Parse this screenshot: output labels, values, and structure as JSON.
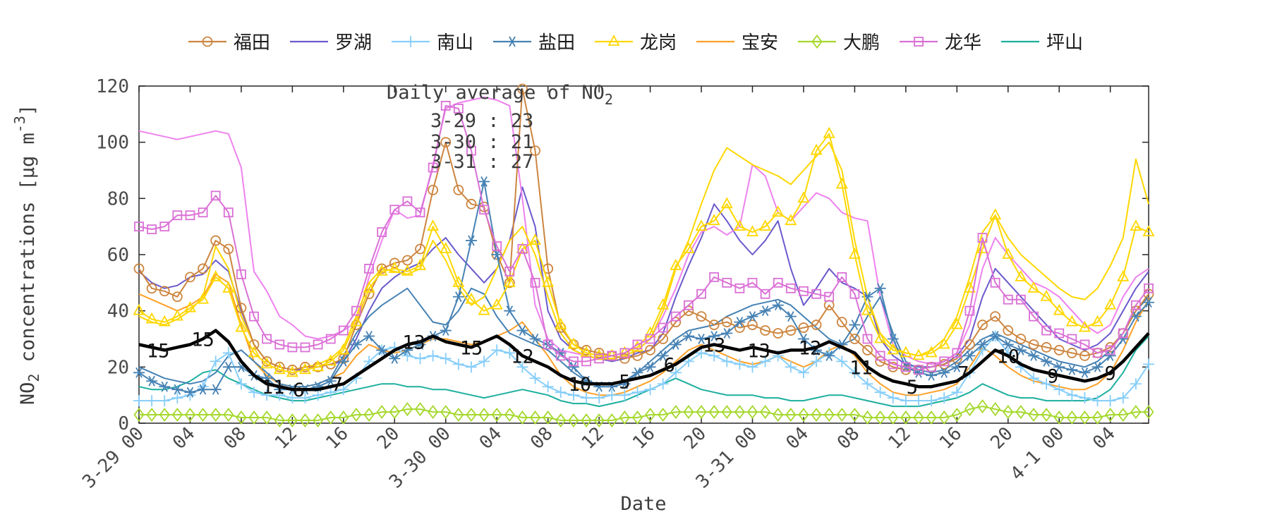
{
  "legend_note": "legend built from series with legend:true",
  "chart_data": {
    "type": "line",
    "xlabel": "Date",
    "ylabel": {
      "p1": "NO",
      "sub": "2",
      "p2": " concentrations [μg m",
      "sup": "-3",
      "p3": "]"
    },
    "ylim": [
      0,
      120
    ],
    "yticks": [
      0,
      20,
      40,
      60,
      80,
      100,
      120
    ],
    "hours_total": 79,
    "xticks": [
      {
        "h": 0,
        "label": "3-29 00"
      },
      {
        "h": 4,
        "label": "04"
      },
      {
        "h": 8,
        "label": "08"
      },
      {
        "h": 12,
        "label": "12"
      },
      {
        "h": 16,
        "label": "16"
      },
      {
        "h": 20,
        "label": "20"
      },
      {
        "h": 24,
        "label": "3-30 00"
      },
      {
        "h": 28,
        "label": "04"
      },
      {
        "h": 32,
        "label": "08"
      },
      {
        "h": 36,
        "label": "12"
      },
      {
        "h": 40,
        "label": "16"
      },
      {
        "h": 44,
        "label": "20"
      },
      {
        "h": 48,
        "label": "3-31 00"
      },
      {
        "h": 52,
        "label": "04"
      },
      {
        "h": 56,
        "label": "08"
      },
      {
        "h": 60,
        "label": "12"
      },
      {
        "h": 64,
        "label": "16"
      },
      {
        "h": 68,
        "label": "20"
      },
      {
        "h": 72,
        "label": "4-1 00"
      },
      {
        "h": 76,
        "label": "04"
      }
    ],
    "annotation": {
      "title": "Daily average of NO",
      "title_sub": "2",
      "rows": [
        "3-29 : 23",
        "3-30 : 21",
        "3-31 : 27"
      ]
    },
    "line_labels": [
      {
        "h": 1.5,
        "text": "15"
      },
      {
        "h": 5,
        "text": "15"
      },
      {
        "h": 10.5,
        "text": "11"
      },
      {
        "h": 12.5,
        "text": "6"
      },
      {
        "h": 15.5,
        "text": "7"
      },
      {
        "h": 21.5,
        "text": "13"
      },
      {
        "h": 26,
        "text": "15"
      },
      {
        "h": 30,
        "text": "12"
      },
      {
        "h": 34.5,
        "text": "10"
      },
      {
        "h": 38,
        "text": "5"
      },
      {
        "h": 41.5,
        "text": "6"
      },
      {
        "h": 45,
        "text": "13"
      },
      {
        "h": 48.5,
        "text": "13"
      },
      {
        "h": 52.5,
        "text": "12"
      },
      {
        "h": 56.5,
        "text": "11"
      },
      {
        "h": 60.5,
        "text": "5"
      },
      {
        "h": 64.5,
        "text": "7"
      },
      {
        "h": 68,
        "text": "10"
      },
      {
        "h": 71.5,
        "text": "9"
      },
      {
        "h": 76,
        "text": "9"
      }
    ],
    "series": [
      {
        "id": "futian",
        "label": "福田",
        "color": "#CD853F",
        "marker": "circle",
        "legend": true,
        "width": 2,
        "values": [
          55,
          48,
          47,
          45,
          52,
          55,
          65,
          62,
          41,
          28,
          22,
          20,
          19,
          20,
          20,
          21,
          23,
          35,
          46,
          55,
          57,
          58,
          62,
          83,
          100,
          83,
          78,
          77,
          60,
          50,
          119,
          97,
          55,
          34,
          28,
          26,
          25,
          24,
          23,
          24,
          26,
          30,
          36,
          40,
          38,
          35,
          36,
          34,
          35,
          33,
          32,
          33,
          34,
          35,
          42,
          36,
          30,
          26,
          22,
          20,
          19,
          19,
          20,
          21,
          23,
          28,
          35,
          38,
          33,
          30,
          28,
          27,
          26,
          25,
          24,
          25,
          27,
          32,
          40,
          46
        ]
      },
      {
        "id": "luohu",
        "label": "罗湖",
        "color": "#6A5ACD",
        "marker": "none",
        "legend": true,
        "width": 2,
        "values": [
          54,
          50,
          48,
          49,
          52,
          53,
          58,
          54,
          40,
          28,
          22,
          20,
          19,
          19,
          20,
          21,
          22,
          30,
          40,
          48,
          52,
          55,
          57,
          62,
          66,
          60,
          55,
          50,
          55,
          65,
          84,
          70,
          40,
          30,
          26,
          24,
          23,
          22,
          23,
          25,
          26,
          32,
          45,
          56,
          66,
          78,
          72,
          65,
          60,
          65,
          72,
          55,
          42,
          48,
          55,
          50,
          48,
          45,
          30,
          24,
          21,
          20,
          20,
          21,
          24,
          30,
          45,
          55,
          50,
          45,
          40,
          35,
          30,
          28,
          26,
          28,
          32,
          40,
          48,
          54
        ]
      },
      {
        "id": "nanshan",
        "label": "南山",
        "color": "#87CEFA",
        "marker": "plus",
        "legend": true,
        "width": 2,
        "values": [
          8,
          8,
          8,
          9,
          10,
          13,
          22,
          25,
          14,
          11,
          10,
          10,
          9,
          9,
          10,
          11,
          12,
          16,
          22,
          26,
          27,
          24,
          23,
          24,
          23,
          21,
          20,
          22,
          26,
          25,
          20,
          16,
          13,
          11,
          10,
          9,
          9,
          10,
          10,
          11,
          12,
          14,
          18,
          22,
          25,
          24,
          22,
          21,
          20,
          22,
          24,
          20,
          18,
          22,
          25,
          22,
          18,
          14,
          11,
          9,
          8,
          8,
          8,
          9,
          11,
          18,
          26,
          31,
          25,
          20,
          16,
          14,
          12,
          10,
          9,
          8,
          8,
          9,
          14,
          21
        ]
      },
      {
        "id": "yantian",
        "label": "盐田",
        "color": "#4682B4",
        "marker": "asterisk",
        "legend": true,
        "width": 2,
        "values": [
          18,
          15,
          13,
          12,
          11,
          12,
          12,
          20,
          20,
          17,
          16,
          12,
          12,
          12,
          13,
          15,
          22,
          28,
          31,
          26,
          23,
          26,
          28,
          31,
          33,
          45,
          65,
          86,
          60,
          40,
          33,
          30,
          28,
          25,
          20,
          15,
          13,
          13,
          14,
          18,
          20,
          24,
          28,
          31,
          30,
          31,
          32,
          36,
          38,
          40,
          42,
          38,
          30,
          26,
          24,
          28,
          35,
          45,
          48,
          30,
          20,
          18,
          17,
          18,
          20,
          24,
          28,
          31,
          28,
          26,
          24,
          22,
          20,
          19,
          18,
          20,
          24,
          30,
          38,
          43
        ]
      },
      {
        "id": "longgang",
        "label": "龙岗",
        "color": "#FFD700",
        "marker": "triangle",
        "legend": true,
        "width": 2,
        "values": [
          40,
          37,
          36,
          38,
          41,
          44,
          52,
          48,
          34,
          25,
          21,
          19,
          18,
          19,
          20,
          22,
          26,
          36,
          48,
          54,
          55,
          54,
          56,
          70,
          62,
          50,
          44,
          40,
          42,
          50,
          62,
          65,
          50,
          35,
          28,
          25,
          24,
          24,
          25,
          27,
          32,
          42,
          56,
          62,
          70,
          72,
          78,
          70,
          68,
          70,
          75,
          72,
          80,
          97,
          103,
          85,
          60,
          40,
          30,
          26,
          25,
          24,
          25,
          28,
          35,
          48,
          62,
          74,
          60,
          52,
          48,
          45,
          40,
          36,
          34,
          36,
          42,
          52,
          70,
          68
        ]
      },
      {
        "id": "baoan",
        "label": "宝安",
        "color": "#FFA028",
        "marker": "none",
        "legend": true,
        "width": 2,
        "values": [
          46,
          44,
          42,
          40,
          42,
          45,
          53,
          50,
          35,
          22,
          17,
          14,
          13,
          13,
          14,
          16,
          18,
          24,
          28,
          26,
          25,
          26,
          28,
          30,
          30,
          29,
          28,
          29,
          31,
          33,
          36,
          30,
          24,
          17,
          13,
          11,
          10,
          10,
          11,
          13,
          15,
          18,
          22,
          26,
          28,
          26,
          24,
          22,
          21,
          22,
          24,
          22,
          20,
          22,
          26,
          28,
          24,
          18,
          14,
          11,
          10,
          10,
          11,
          12,
          14,
          20,
          27,
          24,
          20,
          17,
          15,
          14,
          13,
          12,
          12,
          14,
          18,
          26,
          36,
          44
        ]
      },
      {
        "id": "dapeng",
        "label": "大鹏",
        "color": "#A5D82D",
        "marker": "diamond",
        "legend": true,
        "width": 2,
        "values": [
          3,
          3,
          3,
          3,
          3,
          3,
          3,
          3,
          2,
          2,
          2,
          1,
          1,
          1,
          1,
          2,
          2,
          3,
          3,
          4,
          4,
          5,
          5,
          4,
          4,
          3,
          3,
          3,
          3,
          3,
          2,
          2,
          2,
          1,
          1,
          1,
          1,
          1,
          2,
          2,
          3,
          3,
          4,
          4,
          4,
          4,
          4,
          4,
          4,
          4,
          3,
          3,
          3,
          3,
          3,
          3,
          3,
          2,
          2,
          2,
          2,
          2,
          2,
          2,
          3,
          5,
          6,
          5,
          4,
          4,
          3,
          3,
          2,
          2,
          2,
          2,
          3,
          3,
          4,
          4
        ]
      },
      {
        "id": "longhua",
        "label": "龙华",
        "color": "#DA70D6",
        "marker": "square",
        "legend": true,
        "width": 2,
        "values": [
          70,
          69,
          70,
          74,
          74,
          75,
          81,
          75,
          53,
          38,
          30,
          28,
          27,
          27,
          28,
          30,
          33,
          40,
          55,
          68,
          76,
          79,
          75,
          91,
          113,
          112,
          97,
          76,
          63,
          54,
          62,
          50,
          28,
          24,
          22,
          22,
          23,
          24,
          25,
          28,
          30,
          34,
          38,
          42,
          46,
          52,
          50,
          48,
          50,
          46,
          50,
          48,
          47,
          46,
          45,
          52,
          46,
          30,
          24,
          21,
          20,
          19,
          20,
          22,
          25,
          40,
          66,
          50,
          44,
          44,
          38,
          33,
          32,
          30,
          28,
          25,
          26,
          32,
          42,
          48
        ]
      },
      {
        "id": "pingshan",
        "label": "坪山",
        "color": "#1CAF9E",
        "marker": "none",
        "legend": true,
        "width": 2,
        "values": [
          13,
          12,
          12,
          13,
          15,
          18,
          19,
          16,
          14,
          12,
          10,
          9,
          8,
          8,
          9,
          10,
          11,
          12,
          13,
          14,
          14,
          13,
          13,
          12,
          12,
          11,
          10,
          9,
          10,
          11,
          12,
          11,
          10,
          8,
          7,
          7,
          6,
          7,
          8,
          10,
          12,
          14,
          16,
          14,
          12,
          11,
          10,
          10,
          10,
          9,
          9,
          8,
          8,
          9,
          10,
          10,
          9,
          8,
          7,
          6,
          6,
          6,
          7,
          8,
          9,
          11,
          14,
          12,
          10,
          9,
          9,
          8,
          8,
          8,
          8,
          9,
          12,
          18,
          26,
          31
        ]
      },
      {
        "id": "longhua-line2",
        "label": "",
        "color": "#EE82EE",
        "marker": "none",
        "legend": false,
        "width": 2,
        "values": [
          104,
          103,
          102,
          101,
          102,
          103,
          104,
          103,
          91,
          54,
          47,
          38,
          35,
          31,
          30,
          31,
          33,
          36,
          52,
          65,
          76,
          73,
          74,
          92,
          112,
          114,
          115,
          116,
          115,
          113,
          80,
          42,
          30,
          26,
          25,
          24,
          23,
          23,
          24,
          26,
          30,
          38,
          48,
          60,
          68,
          70,
          67,
          70,
          92,
          88,
          75,
          72,
          77,
          82,
          80,
          75,
          73,
          72,
          45,
          28,
          24,
          22,
          21,
          22,
          25,
          35,
          55,
          66,
          60,
          55,
          50,
          48,
          45,
          40,
          35,
          32,
          35,
          45,
          52,
          55
        ]
      },
      {
        "id": "yantian-line2",
        "label": "",
        "color": "#4682B4",
        "marker": "none",
        "legend": false,
        "width": 2,
        "values": [
          20,
          18,
          16,
          15,
          14,
          15,
          18,
          24,
          26,
          22,
          18,
          14,
          13,
          13,
          14,
          16,
          24,
          32,
          38,
          42,
          45,
          48,
          42,
          36,
          35,
          40,
          48,
          46,
          38,
          32,
          30,
          28,
          26,
          22,
          18,
          15,
          14,
          14,
          15,
          18,
          22,
          26,
          30,
          33,
          34,
          35,
          38,
          40,
          42,
          43,
          44,
          42,
          38,
          34,
          30,
          28,
          30,
          38,
          45,
          32,
          22,
          19,
          18,
          19,
          22,
          26,
          30,
          32,
          30,
          28,
          26,
          24,
          22,
          21,
          20,
          22,
          26,
          32,
          40,
          45
        ]
      },
      {
        "id": "longgang-line2",
        "label": "",
        "color": "#FFD700",
        "marker": "none",
        "legend": false,
        "width": 2,
        "values": [
          38,
          36,
          35,
          37,
          40,
          45,
          63,
          55,
          38,
          28,
          22,
          20,
          19,
          20,
          21,
          23,
          27,
          38,
          50,
          55,
          54,
          53,
          55,
          65,
          58,
          48,
          42,
          45,
          55,
          65,
          70,
          60,
          45,
          32,
          26,
          24,
          23,
          23,
          24,
          26,
          30,
          40,
          55,
          65,
          78,
          90,
          98,
          95,
          92,
          90,
          88,
          85,
          90,
          95,
          100,
          90,
          65,
          45,
          32,
          27,
          25,
          24,
          26,
          30,
          38,
          52,
          68,
          74,
          66,
          60,
          56,
          52,
          48,
          45,
          44,
          48,
          56,
          66,
          94,
          78
        ]
      },
      {
        "id": "average-line",
        "label": "",
        "color": "#000000",
        "marker": "none",
        "legend": false,
        "width": 4.5,
        "values": [
          28,
          27,
          26,
          27,
          28,
          30,
          33,
          29,
          22,
          17,
          14,
          13,
          12,
          12,
          12,
          13,
          14,
          17,
          20,
          23,
          26,
          28,
          29,
          31,
          29,
          28,
          27,
          29,
          31,
          28,
          24,
          22,
          20,
          17,
          15,
          14,
          14,
          14,
          15,
          16,
          17,
          19,
          21,
          24,
          27,
          28,
          27,
          26,
          27,
          26,
          25,
          26,
          26,
          27,
          29,
          27,
          25,
          20,
          17,
          15,
          14,
          13,
          13,
          14,
          15,
          18,
          22,
          26,
          24,
          21,
          19,
          18,
          17,
          16,
          15,
          16,
          18,
          22,
          27,
          32
        ]
      }
    ]
  }
}
